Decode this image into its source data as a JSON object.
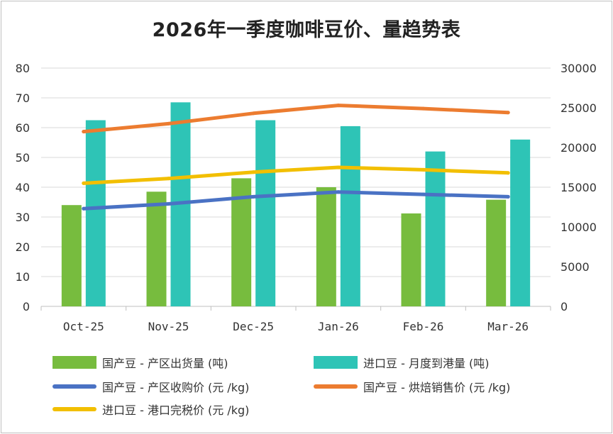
{
  "chart_data": {
    "type": "bar+line",
    "title": "2026年一季度咖啡豆价、量趋势表",
    "categories": [
      "Oct-25",
      "Nov-25",
      "Dec-25",
      "Jan-26",
      "Feb-26",
      "Mar-26"
    ],
    "y_left": {
      "ticks": [
        0,
        10,
        20,
        30,
        40,
        50,
        60,
        70,
        80
      ],
      "ylim": [
        0,
        80
      ]
    },
    "y_right": {
      "ticks": [
        0,
        5000,
        10000,
        15000,
        20000,
        25000,
        30000
      ],
      "ylim": [
        0,
        30000
      ]
    },
    "grid": true,
    "legend_position": "bottom",
    "series": [
      {
        "name": "国产豆 - 产区出货量 (吨)",
        "kind": "bar",
        "axis": "left",
        "color": "#77bc3e",
        "values": [
          34,
          38.5,
          43,
          40,
          31.2,
          35.8
        ]
      },
      {
        "name": "进口豆 - 月度到港量 (吨)",
        "kind": "bar",
        "axis": "left",
        "color": "#2ec4b6",
        "values": [
          62.5,
          68.5,
          62.5,
          60.5,
          52,
          56
        ]
      },
      {
        "name": "国产豆 - 产区收购价 (元 /kg)",
        "kind": "line",
        "axis": "right",
        "color": "#4a72c4",
        "values": [
          12300,
          12900,
          13800,
          14400,
          14100,
          13800
        ]
      },
      {
        "name": "国产豆 - 烘焙销售价 (元 /kg)",
        "kind": "line",
        "axis": "right",
        "color": "#ec7c30",
        "values": [
          22000,
          23000,
          24300,
          25300,
          24900,
          24400
        ]
      },
      {
        "name": "进口豆 - 港口完税价 (元 /kg)",
        "kind": "line",
        "axis": "right",
        "color": "#f2bf00",
        "values": [
          15500,
          16100,
          16900,
          17500,
          17200,
          16800
        ]
      }
    ]
  }
}
